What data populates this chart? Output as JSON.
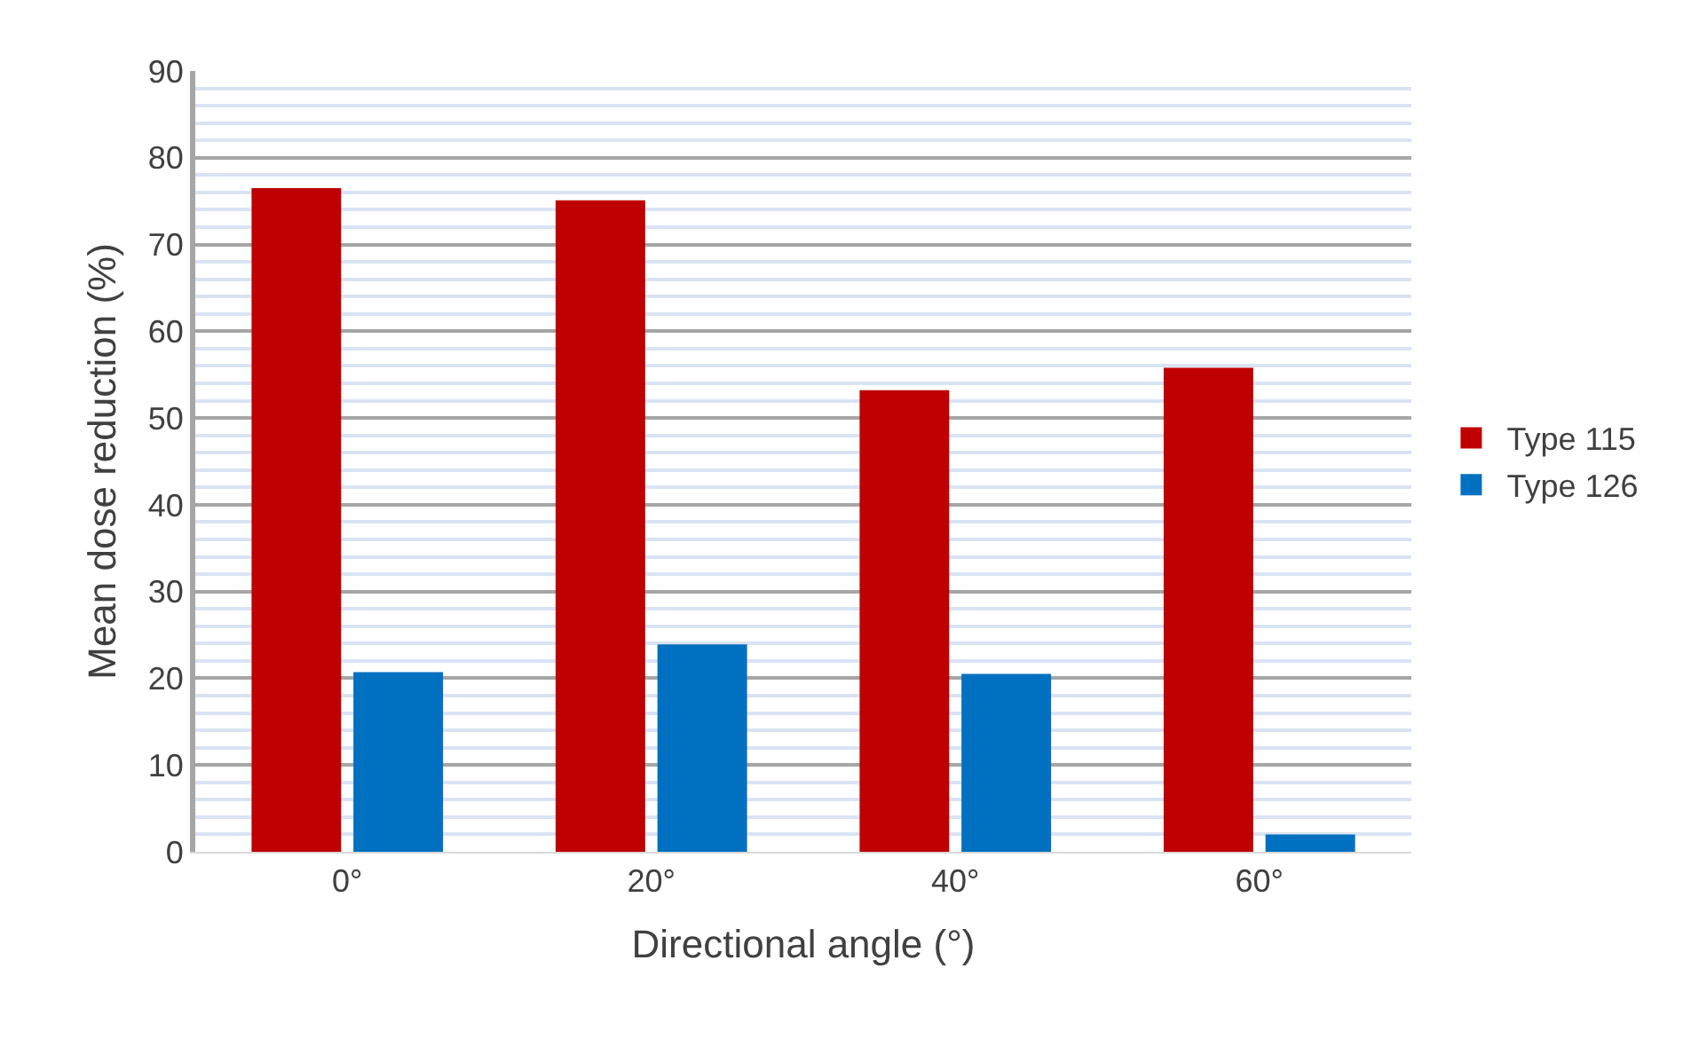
{
  "chart_data": {
    "type": "bar",
    "xlabel": "Directional angle (°)",
    "ylabel": "Mean dose reduction (%)",
    "categories": [
      "0°",
      "20°",
      "40°",
      "60°"
    ],
    "series": [
      {
        "name": "Type 115",
        "color": "#c00000",
        "values": [
          76.5,
          75.1,
          53.2,
          55.8
        ]
      },
      {
        "name": "Type 126",
        "color": "#0070c0",
        "values": [
          20.7,
          23.9,
          20.5,
          2.0
        ]
      }
    ],
    "ylim": [
      0,
      90
    ],
    "yticks": [
      0,
      10,
      20,
      30,
      40,
      50,
      60,
      70,
      80,
      90
    ],
    "grid": "y",
    "legend": "right"
  }
}
